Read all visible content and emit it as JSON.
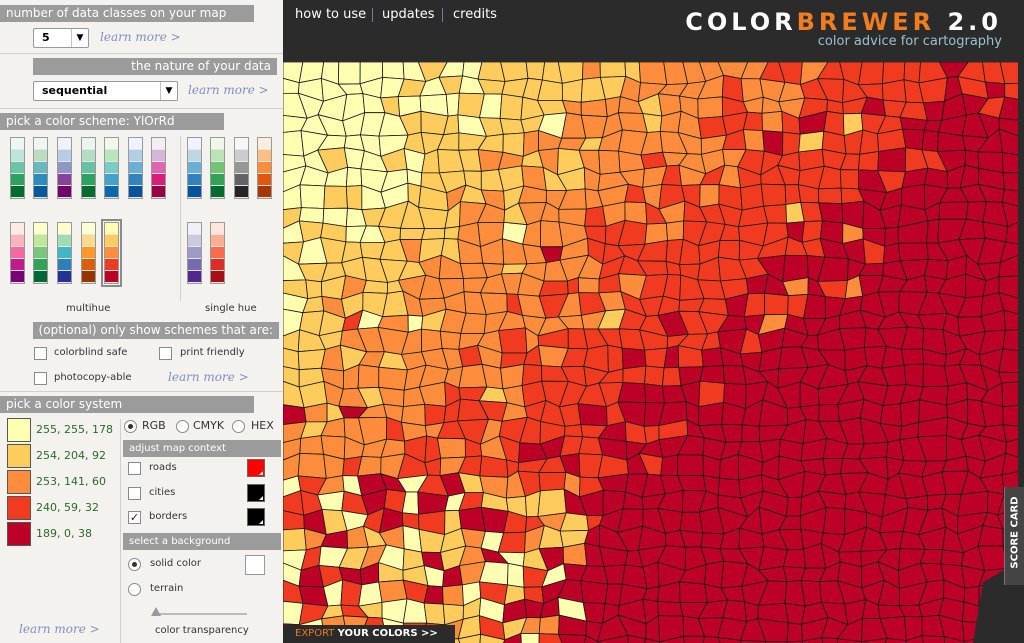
{
  "left": {
    "classes": {
      "header": "number of data classes on your map",
      "value": "5",
      "learn_more": "learn more >"
    },
    "nature": {
      "header": "the nature of your data",
      "value": "sequential",
      "learn_more": "learn more >"
    },
    "scheme": {
      "header": "pick a color scheme: YlOrRd",
      "multihue_label": "multihue",
      "singlehue_label": "single hue",
      "optional_header": "(optional) only show schemes that are:",
      "filters": {
        "colorblind": "colorblind safe",
        "print": "print friendly",
        "photocopy": "photocopy-able"
      },
      "learn_more": "learn more >"
    },
    "system": {
      "header": "pick a color system",
      "rgb": "RGB",
      "cmyk": "CMYK",
      "hex": "HEX",
      "colors": [
        {
          "value": "255, 255, 178",
          "hex": "#ffffb2"
        },
        {
          "value": "254, 204, 92",
          "hex": "#fecc5c"
        },
        {
          "value": "253, 141, 60",
          "hex": "#fd8d3c"
        },
        {
          "value": "240, 59, 32",
          "hex": "#f03b20"
        },
        {
          "value": "189, 0, 38",
          "hex": "#bd0026"
        }
      ],
      "learn_more": "learn more >"
    },
    "context": {
      "header": "adjust map context",
      "roads": "roads",
      "cities": "cities",
      "borders": "borders",
      "roads_color": "#ff0000",
      "cities_color": "#000000",
      "borders_color": "#000000"
    },
    "background": {
      "header": "select a background",
      "solid": "solid color",
      "terrain": "terrain",
      "transparency": "color transparency",
      "solid_color": "#ffffff"
    }
  },
  "nav": {
    "how_to_use": "how to use",
    "updates": "updates",
    "credits": "credits"
  },
  "brand": {
    "part1": "COLOR",
    "part2": "BREWER",
    "version": " 2.0",
    "tagline": "color advice for cartography"
  },
  "footer": {
    "export1": "EXPORT ",
    "export2": "YOUR COLORS >>"
  },
  "scorecard": "SCORE CARD",
  "colors": {
    "multihue_schemes": [
      [
        "#ecf6f2",
        "#bde5d8",
        "#6cc3a7",
        "#2ca25f",
        "#006d2c"
      ],
      [
        "#eef6ee",
        "#bbdcbf",
        "#68b8c2",
        "#2b8cbe",
        "#08589e"
      ],
      [
        "#eef3f9",
        "#b7cde5",
        "#8c97c6",
        "#88419d",
        "#6e016b"
      ],
      [
        "#e9f5ef",
        "#b4dcc2",
        "#66c2a4",
        "#2ca25f",
        "#006d2c"
      ],
      [
        "#f0f9e8",
        "#bae4bc",
        "#7bccc4",
        "#43a2ca",
        "#0868ac"
      ],
      [
        "#eff3ff",
        "#b3cde3",
        "#6baed6",
        "#3182bd",
        "#08519c"
      ],
      [
        "#f1eef6",
        "#d7b5d8",
        "#df65b0",
        "#dd1c77",
        "#980043"
      ],
      [
        "#feebe2",
        "#fbb4b9",
        "#f768a1",
        "#c51b8a",
        "#7a0177"
      ],
      [
        "#ffffcc",
        "#c2e699",
        "#78c679",
        "#31a354",
        "#006837"
      ],
      [
        "#ffffcc",
        "#a1dab4",
        "#41b6c4",
        "#2c7fb8",
        "#253494"
      ],
      [
        "#ffffd4",
        "#fed98e",
        "#fe9929",
        "#d95f0e",
        "#993404"
      ],
      [
        "#ffffb2",
        "#fecc5c",
        "#fd8d3c",
        "#f03b20",
        "#bd0026"
      ]
    ],
    "singlehue_schemes": [
      [
        "#eff3ff",
        "#bdd7e7",
        "#6baed6",
        "#3182bd",
        "#08519c"
      ],
      [
        "#edf8e9",
        "#bae4b3",
        "#74c476",
        "#31a354",
        "#006d2c"
      ],
      [
        "#f7f7f7",
        "#cccccc",
        "#969696",
        "#636363",
        "#252525"
      ],
      [
        "#feedde",
        "#fdbe85",
        "#fd8d3c",
        "#e6550d",
        "#a63603"
      ],
      [
        "#f2f0f7",
        "#cbc9e2",
        "#9e9ac8",
        "#756bb1",
        "#54278f"
      ],
      [
        "#fee5d9",
        "#fcae91",
        "#fb6a4a",
        "#de2d26",
        "#a50f15"
      ]
    ]
  }
}
